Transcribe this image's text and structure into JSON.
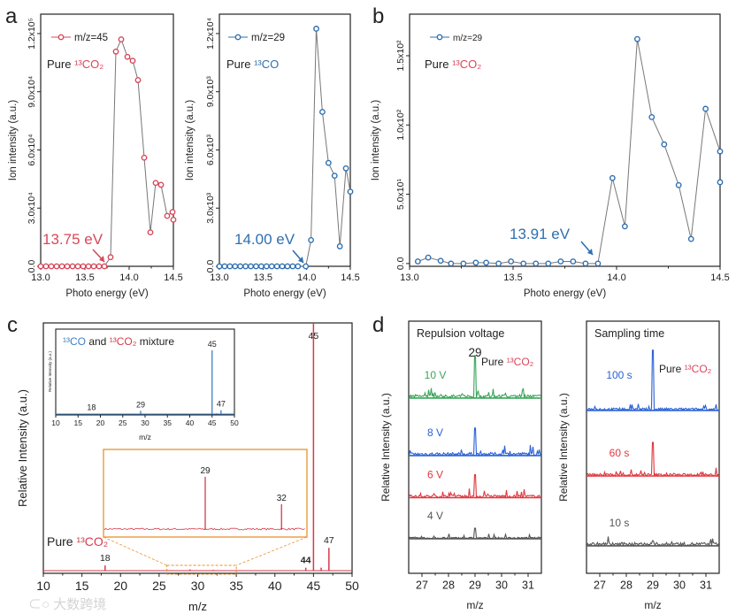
{
  "panel_letters": [
    "a",
    "b",
    "c",
    "d"
  ],
  "watermark": "大数跨境",
  "colors": {
    "red": "#d9475a",
    "blue": "#2f6fb0",
    "line": "#777777",
    "orange": "#e8912e",
    "inset_blue": "#3b7fc4",
    "green": "#3aa45a",
    "d_blue": "#2a62d6",
    "d_red": "#e0373f",
    "grey": "#555555"
  },
  "chart_data": [
    {
      "id": "a1",
      "type": "line",
      "xlabel": "Photo energy (eV)",
      "ylabel": "Ion intensity (a.u.)",
      "xlim": [
        13.0,
        14.5
      ],
      "ylim": [
        0,
        130000
      ],
      "xticks": [
        13.0,
        13.5,
        14.0,
        14.5
      ],
      "xtick_labels": [
        "13.0",
        "13.5",
        "14.0",
        "14.5"
      ],
      "yticks": [
        0,
        30000,
        60000,
        90000,
        120000
      ],
      "ytick_labels": [
        "0.0",
        "3.0x10⁴",
        "6.0x10⁴",
        "9.0x10⁴",
        "1.2x10⁵"
      ],
      "legend": "m/z=45",
      "legend_placement": "top-left",
      "sample_label": {
        "prefix": "Pure ",
        "species": "¹³CO₂"
      },
      "annotation": {
        "text": "13.75 eV",
        "x": 13.75
      },
      "x": [
        13.0,
        13.06,
        13.12,
        13.18,
        13.24,
        13.3,
        13.36,
        13.42,
        13.48,
        13.54,
        13.6,
        13.66,
        13.72,
        13.79,
        13.85,
        13.91,
        13.98,
        14.04,
        14.1,
        14.17,
        14.24,
        14.3,
        14.36,
        14.43,
        14.49,
        14.5
      ],
      "y": [
        0,
        0,
        0,
        0,
        0,
        0,
        0,
        0,
        0,
        0,
        0,
        0,
        0,
        4700,
        110700,
        117000,
        108000,
        106000,
        96000,
        56000,
        17500,
        43000,
        42000,
        26000,
        28000,
        24000
      ]
    },
    {
      "id": "a2",
      "type": "line",
      "xlabel": "Photo energy (eV)",
      "ylabel": "Ion intensity (a.u.)",
      "xlim": [
        13.0,
        14.5
      ],
      "ylim": [
        0,
        13000
      ],
      "xticks": [
        13.0,
        13.5,
        14.0,
        14.5
      ],
      "xtick_labels": [
        "13.0",
        "13.5",
        "14.0",
        "14.5"
      ],
      "yticks": [
        0,
        3000,
        6000,
        9000,
        12000
      ],
      "ytick_labels": [
        "0.0",
        "3.0x10³",
        "6.0x10³",
        "9.0x10³",
        "1.2x10⁴"
      ],
      "legend": "m/z=29",
      "legend_placement": "top-left",
      "sample_label": {
        "prefix": "Pure ",
        "species": "¹³CO"
      },
      "annotation": {
        "text": "14.00 eV",
        "x": 14.0
      },
      "x": [
        13.0,
        13.06,
        13.12,
        13.18,
        13.24,
        13.3,
        13.36,
        13.42,
        13.48,
        13.54,
        13.6,
        13.66,
        13.72,
        13.78,
        13.84,
        13.9,
        13.99,
        14.05,
        14.11,
        14.18,
        14.25,
        14.32,
        14.38,
        14.45,
        14.5
      ],
      "y": [
        0,
        0,
        0,
        0,
        0,
        0,
        0,
        0,
        0,
        0,
        0,
        0,
        0,
        0,
        0,
        0,
        0,
        1350,
        12250,
        7960,
        5330,
        4670,
        1030,
        5050,
        3850
      ]
    },
    {
      "id": "b",
      "type": "line",
      "xlabel": "Photo energy (eV)",
      "ylabel": "Ion intensity (a.u.)",
      "xlim": [
        13.0,
        14.5
      ],
      "ylim": [
        -2,
        180
      ],
      "xticks": [
        13.0,
        13.5,
        14.0,
        14.5
      ],
      "xtick_labels": [
        "13.0",
        "13.5",
        "14.0",
        "14.5"
      ],
      "yticks": [
        0,
        50,
        100,
        150
      ],
      "ytick_labels": [
        "0.0",
        "5.0x10¹",
        "1.0x10²",
        "1.5x10²"
      ],
      "legend": "m/z=29",
      "legend_placement": "top-left",
      "sample_label": {
        "prefix": "Pure ",
        "species": "¹³CO₂"
      },
      "annotation": {
        "text": "13.91 eV",
        "x": 13.91
      },
      "x": [
        13.04,
        13.09,
        13.15,
        13.2,
        13.26,
        13.32,
        13.37,
        13.43,
        13.49,
        13.55,
        13.61,
        13.67,
        13.73,
        13.79,
        13.85,
        13.91,
        13.98,
        14.04,
        14.1,
        14.17,
        14.23,
        14.3,
        14.36,
        14.43,
        14.5
      ],
      "y": [
        1.5,
        4.3,
        2,
        0,
        0,
        0.6,
        0.6,
        0,
        1.5,
        0,
        0,
        0,
        1.5,
        1.5,
        0,
        0,
        61.7,
        26.8,
        162,
        105.7,
        86,
        56.6,
        17.7,
        111.7,
        80.9
      ],
      "extra_points": [
        {
          "x": 14.5,
          "y": 58.7
        }
      ]
    },
    {
      "id": "c",
      "type": "bar",
      "xlabel": "m/z",
      "ylabel": "Relative Intensity (a.u.)",
      "xlim": [
        10,
        50
      ],
      "ylim": [
        0,
        100
      ],
      "xticks": [
        10,
        15,
        20,
        25,
        30,
        35,
        40,
        45,
        50
      ],
      "xtick_labels": [
        "10",
        "15",
        "20",
        "25",
        "30",
        "35",
        "40",
        "45",
        "50"
      ],
      "sample_label": {
        "prefix": "Pure ",
        "species": "¹³CO₂"
      },
      "peaks": [
        {
          "mz": 18,
          "value": 2.1,
          "label": "18"
        },
        {
          "mz": 29,
          "value": 0.5,
          "label": ""
        },
        {
          "mz": 32,
          "value": 0.3,
          "label": ""
        },
        {
          "mz": 44,
          "value": 1.2,
          "label": "44"
        },
        {
          "mz": 45,
          "value": 100,
          "label": "45"
        },
        {
          "mz": 46,
          "value": 1.2,
          "label": ""
        },
        {
          "mz": 47,
          "value": 9.2,
          "label": "47"
        }
      ],
      "zoom_region": [
        26,
        35
      ],
      "zoom_inset": {
        "xlim": [
          25,
          33
        ],
        "ylim": [
          0,
          100
        ],
        "peaks": [
          {
            "mz": 29,
            "value": 66,
            "label": "29"
          },
          {
            "mz": 32,
            "value": 32,
            "label": "32"
          }
        ]
      },
      "mixture_inset": {
        "title_parts": [
          "¹³CO",
          " and ",
          "¹³CO₂",
          " mixture"
        ],
        "xlabel": "m/z",
        "ylabel": "Relative Intensity (a.u.)",
        "xlim": [
          10,
          50
        ],
        "ylim": [
          0,
          100
        ],
        "xticks": [
          10,
          15,
          20,
          25,
          30,
          35,
          40,
          45,
          50
        ],
        "xtick_labels": [
          "10",
          "15",
          "20",
          "25",
          "30",
          "35",
          "40",
          "45",
          "50"
        ],
        "peaks": [
          {
            "mz": 18,
            "value": 0.5,
            "label": "18"
          },
          {
            "mz": 29,
            "value": 3.8,
            "label": "29"
          },
          {
            "mz": 44,
            "value": 0.6,
            "label": ""
          },
          {
            "mz": 45,
            "value": 75,
            "label": "45"
          },
          {
            "mz": 46,
            "value": 0.8,
            "label": ""
          },
          {
            "mz": 47,
            "value": 4.5,
            "label": "47"
          }
        ]
      }
    },
    {
      "id": "d1",
      "type": "line",
      "title": "Repulsion voltage",
      "xlabel": "m/z",
      "ylabel": "Relative Intensity (a.u.)",
      "xlim": [
        26.5,
        31.5
      ],
      "ylim": [
        0,
        100
      ],
      "xticks": [
        27,
        28,
        29,
        30,
        31
      ],
      "xtick_labels": [
        "27",
        "28",
        "29",
        "30",
        "31"
      ],
      "peak_label": "29",
      "sample_label": {
        "prefix": "Pure ",
        "species": "¹³CO₂"
      },
      "traces": [
        {
          "label": "10 V",
          "color": "#3aa45a",
          "offset": 69.5,
          "peak": 16.8,
          "noise": 2.2
        },
        {
          "label": "8 V",
          "color": "#2a62d6",
          "offset": 46.7,
          "peak": 10.9,
          "noise": 2.0
        },
        {
          "label": "6 V",
          "color": "#e0373f",
          "offset": 30.0,
          "peak": 9.1,
          "noise": 1.8
        },
        {
          "label": "4 V",
          "color": "#555555",
          "offset": 13.7,
          "peak": 4.2,
          "noise": 1.0
        }
      ]
    },
    {
      "id": "d2",
      "type": "line",
      "title": "Sampling time",
      "xlabel": "m/z",
      "ylabel": "Relative Intensity (a.u.)",
      "xlim": [
        26.5,
        31.5
      ],
      "ylim": [
        0,
        100
      ],
      "xticks": [
        27,
        28,
        29,
        30,
        31
      ],
      "xtick_labels": [
        "27",
        "28",
        "29",
        "30",
        "31"
      ],
      "sample_label": {
        "prefix": "Pure ",
        "species": "¹³CO₂"
      },
      "traces": [
        {
          "label": "100 s",
          "color": "#2a62d6",
          "offset": 64.6,
          "peak": 23.9,
          "noise": 1.6
        },
        {
          "label": "60 s",
          "color": "#e0373f",
          "offset": 38.6,
          "peak": 13.3,
          "noise": 1.6
        },
        {
          "label": "10 s",
          "color": "#555555",
          "offset": 10.9,
          "peak": 2.0,
          "noise": 2.2
        }
      ]
    }
  ]
}
